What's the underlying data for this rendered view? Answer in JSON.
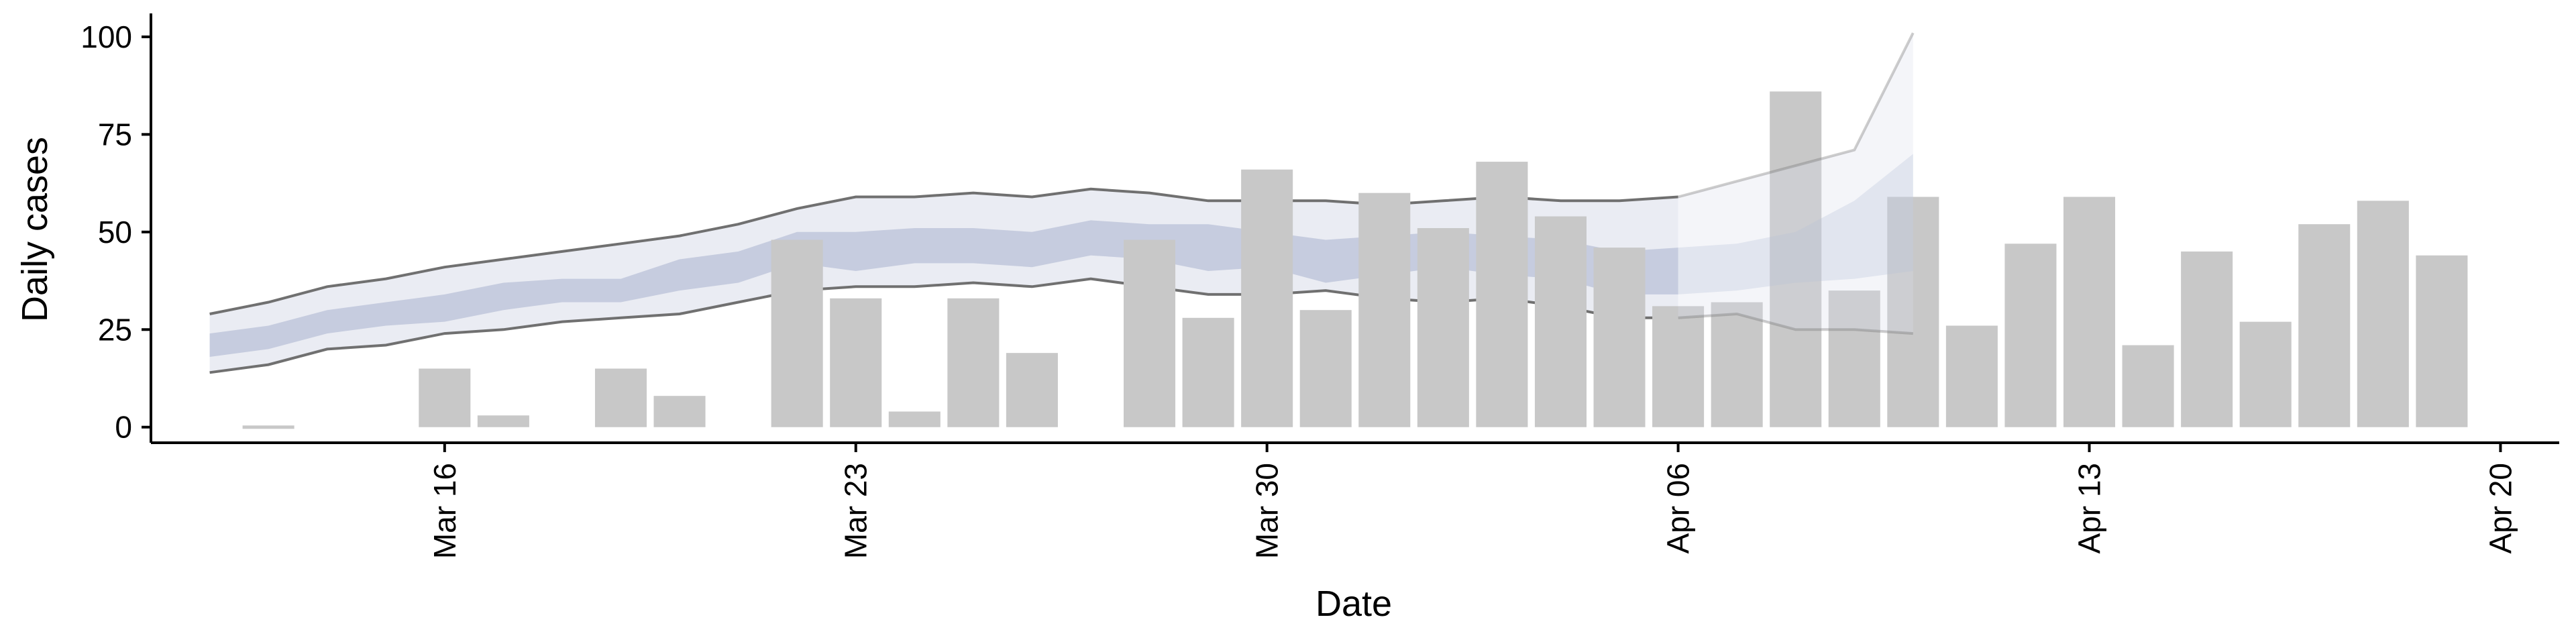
{
  "chart_data": {
    "type": "bar",
    "xlabel": "Date",
    "ylabel": "Daily cases",
    "ylim": [
      -4,
      106
    ],
    "xlim": [
      "2020-03-11",
      "2020-04-21"
    ],
    "x_ticks": [
      {
        "date": "2020-03-16",
        "label": "Mar 16"
      },
      {
        "date": "2020-03-23",
        "label": "Mar 23"
      },
      {
        "date": "2020-03-30",
        "label": "Mar 30"
      },
      {
        "date": "2020-04-06",
        "label": "Apr 06"
      },
      {
        "date": "2020-04-13",
        "label": "Apr 13"
      },
      {
        "date": "2020-04-20",
        "label": "Apr 20"
      }
    ],
    "y_ticks": [
      {
        "value": 0,
        "label": "0"
      },
      {
        "value": 25,
        "label": "25"
      },
      {
        "value": 50,
        "label": "50"
      },
      {
        "value": 75,
        "label": "75"
      },
      {
        "value": 100,
        "label": "100"
      }
    ],
    "grid": false,
    "colors": {
      "bars": "#c8c8c8",
      "outer_band": "#dcdfeb",
      "inner_band": "#b7bfd6",
      "band_lines": "#707070"
    },
    "bars": [
      {
        "date": "2020-03-13",
        "value": 0.5
      },
      {
        "date": "2020-03-16",
        "value": 15
      },
      {
        "date": "2020-03-17",
        "value": 3
      },
      {
        "date": "2020-03-19",
        "value": 15
      },
      {
        "date": "2020-03-20",
        "value": 8
      },
      {
        "date": "2020-03-22",
        "value": 48
      },
      {
        "date": "2020-03-23",
        "value": 33
      },
      {
        "date": "2020-03-24",
        "value": 4
      },
      {
        "date": "2020-03-25",
        "value": 33
      },
      {
        "date": "2020-03-26",
        "value": 19
      },
      {
        "date": "2020-03-28",
        "value": 48
      },
      {
        "date": "2020-03-29",
        "value": 28
      },
      {
        "date": "2020-03-30",
        "value": 66
      },
      {
        "date": "2020-03-31",
        "value": 30
      },
      {
        "date": "2020-04-01",
        "value": 60
      },
      {
        "date": "2020-04-02",
        "value": 51
      },
      {
        "date": "2020-04-03",
        "value": 68
      },
      {
        "date": "2020-04-04",
        "value": 54
      },
      {
        "date": "2020-04-05",
        "value": 46
      },
      {
        "date": "2020-04-06",
        "value": 31
      },
      {
        "date": "2020-04-07",
        "value": 32
      },
      {
        "date": "2020-04-08",
        "value": 86
      },
      {
        "date": "2020-04-09",
        "value": 35
      },
      {
        "date": "2020-04-10",
        "value": 59
      },
      {
        "date": "2020-04-11",
        "value": 26
      },
      {
        "date": "2020-04-12",
        "value": 47
      },
      {
        "date": "2020-04-13",
        "value": 59
      },
      {
        "date": "2020-04-14",
        "value": 21
      },
      {
        "date": "2020-04-15",
        "value": 45
      },
      {
        "date": "2020-04-16",
        "value": 27
      },
      {
        "date": "2020-04-17",
        "value": 52
      },
      {
        "date": "2020-04-18",
        "value": 58
      },
      {
        "date": "2020-04-19",
        "value": 44
      }
    ],
    "estimate": {
      "dates": [
        "2020-03-12",
        "2020-03-13",
        "2020-03-14",
        "2020-03-15",
        "2020-03-16",
        "2020-03-17",
        "2020-03-18",
        "2020-03-19",
        "2020-03-20",
        "2020-03-21",
        "2020-03-22",
        "2020-03-23",
        "2020-03-24",
        "2020-03-25",
        "2020-03-26",
        "2020-03-27",
        "2020-03-28",
        "2020-03-29",
        "2020-03-30",
        "2020-03-31",
        "2020-04-01",
        "2020-04-02",
        "2020-04-03",
        "2020-04-04",
        "2020-04-05",
        "2020-04-06"
      ],
      "lower_90": [
        14,
        16,
        20,
        21,
        24,
        25,
        27,
        28,
        29,
        32,
        35,
        36,
        36,
        37,
        36,
        38,
        36,
        34,
        34,
        35,
        33,
        32,
        33,
        31,
        28,
        28
      ],
      "upper_90": [
        29,
        32,
        36,
        38,
        41,
        43,
        45,
        47,
        49,
        52,
        56,
        59,
        59,
        60,
        59,
        61,
        60,
        58,
        58,
        58,
        57,
        58,
        59,
        58,
        58,
        59
      ],
      "lower_50": [
        18,
        20,
        24,
        26,
        27,
        30,
        32,
        32,
        35,
        37,
        42,
        40,
        42,
        42,
        41,
        44,
        43,
        40,
        41,
        37,
        39,
        41,
        39,
        38,
        34,
        34
      ],
      "upper_50": [
        24,
        26,
        30,
        32,
        34,
        37,
        38,
        38,
        43,
        45,
        50,
        50,
        51,
        51,
        50,
        53,
        52,
        52,
        50,
        48,
        49,
        50,
        49,
        48,
        45,
        46
      ]
    },
    "forecast": {
      "dates": [
        "2020-04-06",
        "2020-04-07",
        "2020-04-08",
        "2020-04-09",
        "2020-04-10"
      ],
      "lower_90": [
        28,
        29,
        25,
        25,
        24
      ],
      "upper_90": [
        59,
        63,
        67,
        71,
        101
      ],
      "lower_50": [
        34,
        35,
        37,
        38,
        40
      ],
      "upper_50": [
        46,
        47,
        50,
        58,
        70
      ]
    }
  }
}
